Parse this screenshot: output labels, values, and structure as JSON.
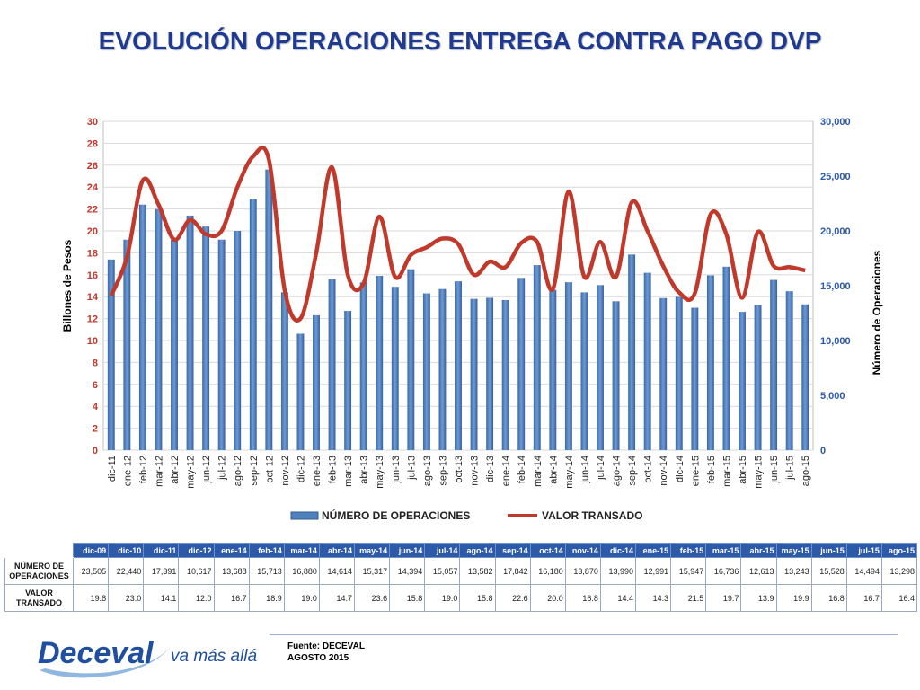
{
  "title": "EVOLUCIÓN OPERACIONES ENTREGA CONTRA PAGO DVP",
  "chart_data": {
    "type": "bar+line",
    "categories": [
      "dic-11",
      "ene-12",
      "feb-12",
      "mar-12",
      "abr-12",
      "may-12",
      "jun-12",
      "jul-12",
      "ago-12",
      "sep-12",
      "oct-12",
      "nov-12",
      "dic-12",
      "ene-13",
      "feb-13",
      "mar-13",
      "abr-13",
      "may-13",
      "jun-13",
      "jul-13",
      "ago-13",
      "sep-13",
      "oct-13",
      "nov-13",
      "dic-13",
      "ene-14",
      "feb-14",
      "mar-14",
      "abr-14",
      "may-14",
      "jun-14",
      "jul-14",
      "ago-14",
      "sep-14",
      "oct-14",
      "nov-14",
      "dic-14",
      "ene-15",
      "feb-15",
      "mar-15",
      "abr-15",
      "may-15",
      "jun-15",
      "jul-15",
      "ago-15"
    ],
    "series": [
      {
        "name": "NÚMERO DE OPERACIONES",
        "type": "bar",
        "axis": "right",
        "color": "#4f81bd",
        "values": [
          17391,
          19200,
          22400,
          22000,
          19200,
          21400,
          20400,
          19200,
          20000,
          22900,
          25600,
          14400,
          10617,
          12300,
          15600,
          12700,
          15300,
          15900,
          14900,
          16500,
          14300,
          14700,
          15400,
          13800,
          13900,
          13688,
          15713,
          16880,
          14614,
          15317,
          14394,
          15057,
          13582,
          17842,
          16180,
          13870,
          13990,
          12991,
          15947,
          16736,
          12613,
          13243,
          15528,
          14494,
          13298
        ]
      },
      {
        "name": "VALOR TRANSADO",
        "type": "line",
        "axis": "left",
        "color": "#c0392b",
        "values": [
          14.1,
          17.6,
          24.6,
          22.4,
          19.2,
          21.0,
          19.7,
          20.0,
          24.0,
          26.8,
          26.5,
          14.6,
          12.0,
          18.0,
          25.8,
          16.0,
          15.2,
          21.3,
          15.8,
          17.8,
          18.5,
          19.3,
          18.8,
          16.0,
          17.2,
          16.7,
          18.9,
          19.0,
          14.7,
          23.6,
          15.8,
          19.0,
          15.8,
          22.6,
          20.0,
          16.8,
          14.4,
          14.3,
          21.5,
          19.7,
          13.9,
          19.9,
          16.8,
          16.7,
          16.4
        ]
      }
    ],
    "ylabel_left": "Billones de Pesos",
    "ylabel_right": "Número de Operaciones",
    "ylim_left": [
      0,
      30
    ],
    "ylim_right": [
      0,
      30000
    ],
    "yticks_left": [
      "0",
      "2",
      "4",
      "6",
      "8",
      "10",
      "12",
      "14",
      "16",
      "18",
      "20",
      "22",
      "24",
      "26",
      "28",
      "30"
    ],
    "yticks_right": [
      "0",
      "5,000",
      "10,000",
      "15,000",
      "20,000",
      "25,000",
      "30,000"
    ],
    "grid": true,
    "legend_position": "bottom"
  },
  "table": {
    "columns": [
      "dic-09",
      "dic-10",
      "dic-11",
      "dic-12",
      "ene-14",
      "feb-14",
      "mar-14",
      "abr-14",
      "may-14",
      "jun-14",
      "jul-14",
      "ago-14",
      "sep-14",
      "oct-14",
      "nov-14",
      "dic-14",
      "ene-15",
      "feb-15",
      "mar-15",
      "abr-15",
      "may-15",
      "jun-15",
      "jul-15",
      "ago-15"
    ],
    "rows": [
      {
        "label_line1": "NÚMERO DE",
        "label_line2": "OPERACIONES",
        "values": [
          "23,505",
          "22,440",
          "17,391",
          "10,617",
          "13,688",
          "15,713",
          "16,880",
          "14,614",
          "15,317",
          "14,394",
          "15,057",
          "13,582",
          "17,842",
          "16,180",
          "13,870",
          "13,990",
          "12,991",
          "15,947",
          "16,736",
          "12,613",
          "13,243",
          "15,528",
          "14,494",
          "13,298"
        ]
      },
      {
        "label_line1": "VALOR",
        "label_line2": "TRANSADO",
        "values": [
          "19.8",
          "23.0",
          "14.1",
          "12.0",
          "16.7",
          "18.9",
          "19.0",
          "14.7",
          "23.6",
          "15.8",
          "19.0",
          "15.8",
          "22.6",
          "20.0",
          "16.8",
          "14.4",
          "14.3",
          "21.5",
          "19.7",
          "13.9",
          "19.9",
          "16.8",
          "16.7",
          "16.4"
        ]
      }
    ]
  },
  "logo": {
    "brand": "Deceval",
    "tagline": "va más allá",
    "color": "#1f4fa0"
  },
  "footer": {
    "source": "Fuente: DECEVAL",
    "date": "AGOSTO 2015"
  }
}
